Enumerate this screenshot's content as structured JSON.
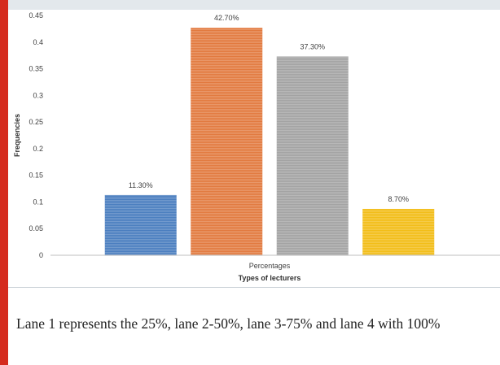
{
  "chart_data": {
    "type": "bar",
    "categories": [
      "Percentages"
    ],
    "series": [
      {
        "values": [
          0.113
        ],
        "label": "11.30%",
        "color": "#4a7ebf"
      },
      {
        "values": [
          0.427
        ],
        "label": "42.70%",
        "color": "#e27a3f"
      },
      {
        "values": [
          0.373
        ],
        "label": "37.30%",
        "color": "#a3a3a3"
      },
      {
        "values": [
          0.087
        ],
        "label": "8.70%",
        "color": "#f2bd17"
      }
    ],
    "ylim": [
      0,
      0.45
    ],
    "yticks": [
      "0",
      "0.05",
      "0.1",
      "0.15",
      "0.2",
      "0.25",
      "0.3",
      "0.35",
      "0.4",
      "0.45"
    ],
    "ylabel": "Frequencies",
    "xlabel": "Types of lecturers",
    "grid": false,
    "legend": "none"
  },
  "caption": "Lane 1 represents the 25%, lane 2-50%, lane 3-75% and lane 4 with 100%"
}
